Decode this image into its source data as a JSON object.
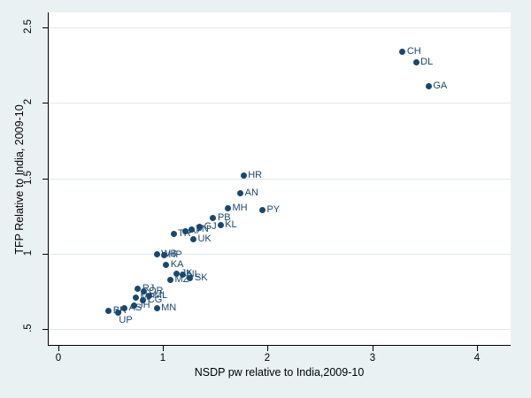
{
  "chart_data": {
    "type": "scatter",
    "title": "",
    "xlabel": "NSDP pw relative to India,2009-10",
    "ylabel": "TFP Relative to India, 2009-10",
    "xlim": [
      -0.102,
      4.324
    ],
    "ylim": [
      0.397,
      2.6
    ],
    "x_ticks": [
      0,
      1,
      2,
      3,
      4
    ],
    "x_tick_labels": [
      "0",
      "1",
      "2",
      "3",
      "4"
    ],
    "y_ticks": [
      0.5,
      1.0,
      1.5,
      2.0,
      2.5
    ],
    "y_tick_labels": [
      ".5",
      "1",
      "1.5",
      "2",
      "2.5"
    ],
    "grid": "horizontal-only",
    "legend": "none",
    "marker_color": "#1a476f",
    "label_color": "#1a476f",
    "background_color": "#eaf1f3",
    "plot_background_color": "#ffffff",
    "gridline_color": "#dde9ec",
    "points": [
      {
        "label": "CH",
        "x": 3.29,
        "y": 2.34
      },
      {
        "label": "DL",
        "x": 3.42,
        "y": 2.27
      },
      {
        "label": "GA",
        "x": 3.54,
        "y": 2.11
      },
      {
        "label": "HR",
        "x": 1.77,
        "y": 1.52
      },
      {
        "label": "AN",
        "x": 1.74,
        "y": 1.4
      },
      {
        "label": "MH",
        "x": 1.62,
        "y": 1.3
      },
      {
        "label": "PY",
        "x": 1.95,
        "y": 1.29
      },
      {
        "label": "PB",
        "x": 1.48,
        "y": 1.24
      },
      {
        "label": "KL",
        "x": 1.55,
        "y": 1.19
      },
      {
        "label": "GJ",
        "x": 1.35,
        "y": 1.18
      },
      {
        "label": "TN",
        "x": 1.27,
        "y": 1.16
      },
      {
        "label": "AP",
        "x": 1.21,
        "y": 1.15
      },
      {
        "label": "TR",
        "x": 1.1,
        "y": 1.13
      },
      {
        "label": "UK",
        "x": 1.29,
        "y": 1.1
      },
      {
        "label": "WB",
        "x": 0.94,
        "y": 1.0
      },
      {
        "label": "HP",
        "x": 1.01,
        "y": 0.99
      },
      {
        "label": "KA",
        "x": 1.03,
        "y": 0.93
      },
      {
        "label": "JK",
        "x": 1.13,
        "y": 0.87
      },
      {
        "label": "NL",
        "x": 1.19,
        "y": 0.86
      },
      {
        "label": "SK",
        "x": 1.26,
        "y": 0.84
      },
      {
        "label": "MZ",
        "x": 1.07,
        "y": 0.83
      },
      {
        "label": "RJ",
        "x": 0.76,
        "y": 0.77
      },
      {
        "label": "OR",
        "x": 0.82,
        "y": 0.75
      },
      {
        "label": "ML",
        "x": 0.87,
        "y": 0.72
      },
      {
        "label": "MP",
        "x": 0.74,
        "y": 0.71
      },
      {
        "label": "CG",
        "x": 0.81,
        "y": 0.69
      },
      {
        "label": "JH",
        "x": 0.72,
        "y": 0.66
      },
      {
        "label": "AS",
        "x": 0.63,
        "y": 0.64
      },
      {
        "label": "MN",
        "x": 0.94,
        "y": 0.64
      },
      {
        "label": "BR",
        "x": 0.48,
        "y": 0.62
      },
      {
        "label": "UP",
        "x": 0.57,
        "y": 0.61,
        "lpos": "br"
      }
    ]
  }
}
